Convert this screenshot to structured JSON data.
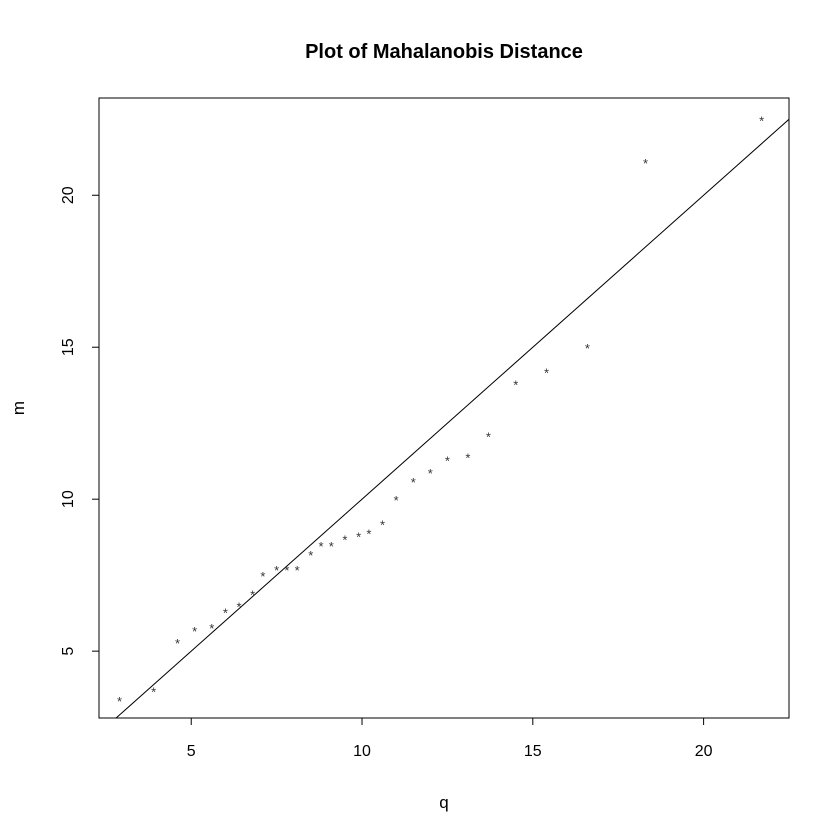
{
  "chart_data": {
    "type": "scatter",
    "title": "Plot of Mahalanobis Distance",
    "xlabel": "q",
    "ylabel": "m",
    "xlim": [
      2.3,
      22.5
    ],
    "ylim": [
      2.8,
      23.2
    ],
    "x_ticks": [
      5,
      10,
      15,
      20
    ],
    "y_ticks": [
      5,
      10,
      15,
      20
    ],
    "grid": false,
    "point_symbol": "*",
    "x": [
      2.9,
      3.9,
      4.6,
      5.1,
      5.6,
      6.0,
      6.4,
      6.8,
      7.1,
      7.5,
      7.8,
      8.1,
      8.5,
      8.8,
      9.1,
      9.5,
      9.9,
      10.2,
      10.6,
      11.0,
      11.5,
      12.0,
      12.5,
      13.1,
      13.7,
      14.5,
      15.4,
      16.6,
      18.3,
      21.7
    ],
    "y": [
      3.4,
      3.7,
      5.3,
      5.7,
      5.8,
      6.3,
      6.5,
      6.9,
      7.5,
      7.7,
      7.7,
      7.7,
      8.2,
      8.5,
      8.5,
      8.7,
      8.8,
      8.9,
      9.2,
      10.0,
      10.6,
      10.9,
      11.3,
      11.4,
      12.1,
      13.8,
      14.2,
      15.0,
      21.1,
      22.5
    ],
    "reference_line": {
      "label": "y = x",
      "x": [
        2.3,
        22.5
      ],
      "y": [
        2.3,
        22.5
      ]
    }
  }
}
